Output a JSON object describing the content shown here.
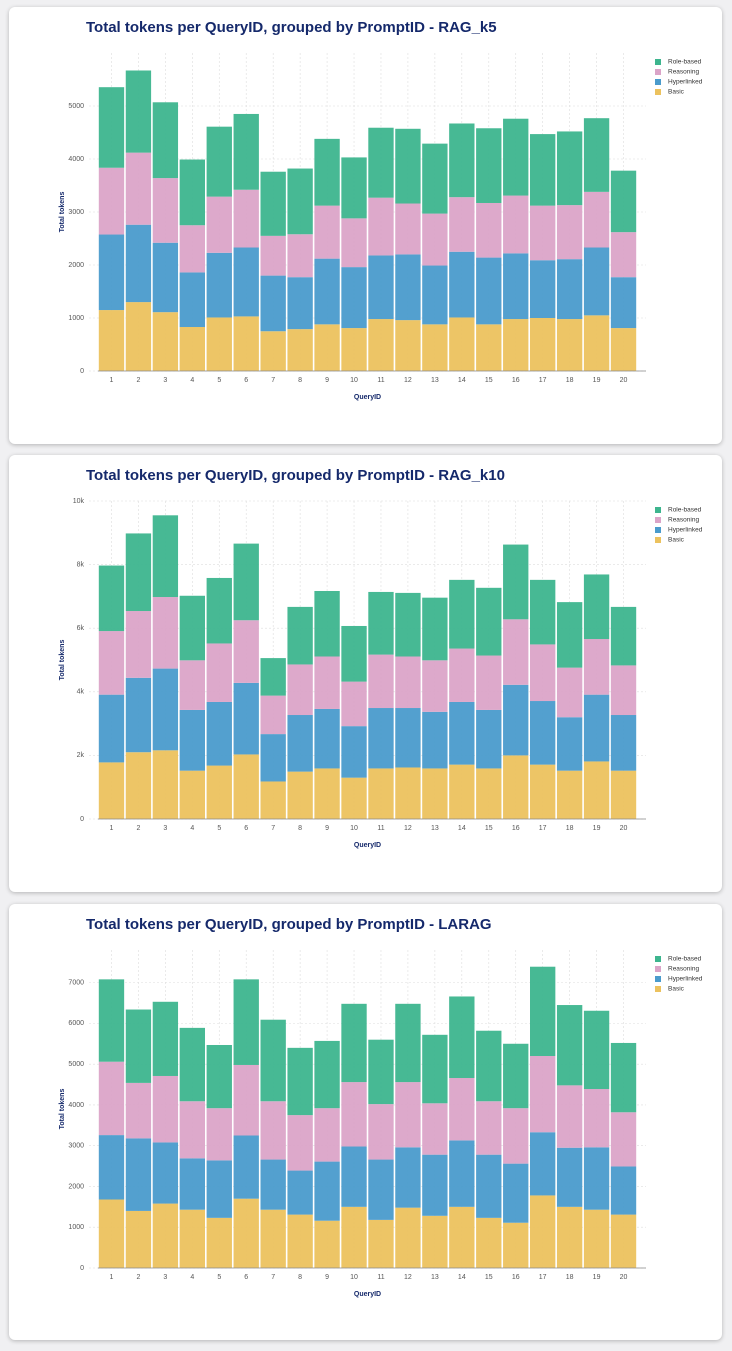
{
  "chart_data": [
    {
      "type": "bar",
      "stacked": true,
      "title": "Total tokens per QueryID, grouped by PromptID - RAG_k5",
      "x_label": "QueryID",
      "y_label": "Total tokens",
      "grid": true,
      "legend": "right",
      "categories": [
        "1",
        "2",
        "3",
        "4",
        "5",
        "6",
        "7",
        "8",
        "9",
        "10",
        "11",
        "12",
        "13",
        "14",
        "15",
        "16",
        "17",
        "18",
        "19",
        "20"
      ],
      "ylim": [
        0,
        6000
      ],
      "yticks": [
        0,
        1000,
        2000,
        3000,
        4000,
        5000
      ],
      "series": [
        {
          "name": "Basic",
          "color": "#ecc25e",
          "values": [
            1150,
            1300,
            1110,
            830,
            1010,
            1030,
            750,
            790,
            880,
            810,
            980,
            960,
            880,
            1010,
            880,
            980,
            1000,
            980,
            1050,
            810
          ]
        },
        {
          "name": "Hyperlinked",
          "color": "#4a9bcc",
          "values": [
            1425,
            1460,
            1310,
            1030,
            1220,
            1300,
            1050,
            980,
            1240,
            1150,
            1200,
            1240,
            1110,
            1240,
            1260,
            1240,
            1090,
            1130,
            1280,
            960
          ]
        },
        {
          "name": "Reasoning",
          "color": "#dba4c8",
          "values": [
            1260,
            1360,
            1220,
            890,
            1060,
            1090,
            750,
            810,
            1000,
            920,
            1090,
            960,
            980,
            1030,
            1030,
            1090,
            1030,
            1020,
            1050,
            850
          ]
        },
        {
          "name": "Role-based",
          "color": "#3db58e",
          "values": [
            1520,
            1550,
            1430,
            1240,
            1320,
            1430,
            1210,
            1240,
            1260,
            1150,
            1320,
            1410,
            1320,
            1390,
            1410,
            1450,
            1350,
            1390,
            1390,
            1160
          ]
        }
      ]
    },
    {
      "type": "bar",
      "stacked": true,
      "title": "Total tokens per QueryID, grouped by PromptID - RAG_k10",
      "x_label": "QueryID",
      "y_label": "Total tokens",
      "grid": true,
      "legend": "right",
      "categories": [
        "1",
        "2",
        "3",
        "4",
        "5",
        "6",
        "7",
        "8",
        "9",
        "10",
        "11",
        "12",
        "13",
        "14",
        "15",
        "16",
        "17",
        "18",
        "19",
        "20"
      ],
      "ylim": [
        0,
        10000
      ],
      "yticks": [
        0,
        {
          "value": 2000,
          "label": "2k"
        },
        {
          "value": 4000,
          "label": "4k"
        },
        {
          "value": 6000,
          "label": "6k"
        },
        {
          "value": 8000,
          "label": "8k"
        },
        {
          "value": 10000,
          "label": "10k"
        }
      ],
      "series": [
        {
          "name": "Basic",
          "color": "#ecc25e",
          "values": [
            1780,
            2100,
            2160,
            1520,
            1680,
            2030,
            1180,
            1490,
            1590,
            1300,
            1590,
            1620,
            1590,
            1710,
            1590,
            2000,
            1710,
            1520,
            1810,
            1520
          ]
        },
        {
          "name": "Hyperlinked",
          "color": "#4a9bcc",
          "values": [
            2130,
            2340,
            2570,
            1910,
            2000,
            2250,
            1490,
            1780,
            1870,
            1620,
            1900,
            1870,
            1780,
            1970,
            1840,
            2220,
            2000,
            1680,
            2100,
            1750
          ]
        },
        {
          "name": "Reasoning",
          "color": "#dba4c8",
          "values": [
            2000,
            2100,
            2250,
            1560,
            1840,
            1970,
            1210,
            1590,
            1650,
            1400,
            1680,
            1620,
            1620,
            1680,
            1710,
            2060,
            1780,
            1560,
            1750,
            1560
          ]
        },
        {
          "name": "Role-based",
          "color": "#3db58e",
          "values": [
            2060,
            2440,
            2570,
            2030,
            2060,
            2410,
            1180,
            1810,
            2060,
            1750,
            1970,
            2000,
            1970,
            2160,
            2130,
            2350,
            2030,
            2060,
            2030,
            1840
          ]
        }
      ]
    },
    {
      "type": "bar",
      "stacked": true,
      "title": "Total tokens per QueryID, grouped by PromptID - LARAG",
      "x_label": "QueryID",
      "y_label": "Total tokens",
      "grid": true,
      "legend": "right",
      "categories": [
        "1",
        "2",
        "3",
        "4",
        "5",
        "6",
        "7",
        "8",
        "9",
        "10",
        "11",
        "12",
        "13",
        "14",
        "15",
        "16",
        "17",
        "18",
        "19",
        "20"
      ],
      "ylim": [
        0,
        7800
      ],
      "yticks": [
        0,
        1000,
        2000,
        3000,
        4000,
        5000,
        6000,
        7000
      ],
      "series": [
        {
          "name": "Basic",
          "color": "#ecc25e",
          "values": [
            1680,
            1400,
            1580,
            1430,
            1230,
            1700,
            1430,
            1310,
            1160,
            1500,
            1180,
            1480,
            1280,
            1500,
            1230,
            1110,
            1780,
            1500,
            1430,
            1310
          ]
        },
        {
          "name": "Hyperlinked",
          "color": "#4a9bcc",
          "values": [
            1580,
            1780,
            1500,
            1260,
            1410,
            1550,
            1230,
            1080,
            1450,
            1480,
            1480,
            1480,
            1500,
            1630,
            1550,
            1450,
            1550,
            1450,
            1530,
            1180
          ]
        },
        {
          "name": "Reasoning",
          "color": "#dba4c8",
          "values": [
            1800,
            1360,
            1630,
            1400,
            1280,
            1730,
            1430,
            1360,
            1310,
            1580,
            1360,
            1600,
            1260,
            1530,
            1310,
            1360,
            1870,
            1530,
            1430,
            1330
          ]
        },
        {
          "name": "Role-based",
          "color": "#3db58e",
          "values": [
            2020,
            1800,
            1820,
            1800,
            1550,
            2100,
            2000,
            1650,
            1650,
            1920,
            1580,
            1920,
            1680,
            2000,
            1730,
            1580,
            2190,
            1970,
            1920,
            1700
          ]
        }
      ]
    }
  ]
}
